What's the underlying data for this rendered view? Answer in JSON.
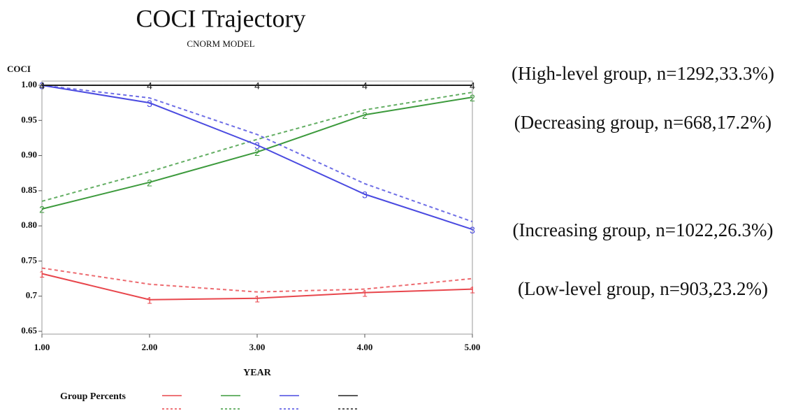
{
  "chart_data": {
    "type": "line",
    "title": "COCI Trajectory",
    "subtitle": "CNORM MODEL",
    "y_label": "COCI",
    "x_label": "YEAR",
    "legend_title": "Group Percents",
    "x": [
      1,
      2,
      3,
      4,
      5
    ],
    "xlim": [
      1,
      5
    ],
    "xticks": [
      {
        "value": 1,
        "label": "1.00"
      },
      {
        "value": 2,
        "label": "2.00"
      },
      {
        "value": 3,
        "label": "3.00"
      },
      {
        "value": 4,
        "label": "4.00"
      },
      {
        "value": 5,
        "label": "5.00"
      }
    ],
    "ylim": [
      0.65,
      1.0
    ],
    "yticks": [
      0.65,
      0.7,
      0.75,
      {
        "value": 0.8,
        "label": "0.80"
      },
      0.85,
      {
        "value": 0.9,
        "label": "0.90"
      },
      0.95,
      {
        "value": 1.0,
        "label": "1.00"
      }
    ],
    "series": [
      {
        "marker": "1",
        "color": "#e8464c",
        "dashed": false,
        "values": [
          0.732,
          0.695,
          0.697,
          0.705,
          0.71
        ]
      },
      {
        "color": "#e8464c",
        "dashed": true,
        "values": [
          0.74,
          0.717,
          0.706,
          0.71,
          0.725
        ]
      },
      {
        "marker": "2",
        "color": "#3c9a3c",
        "dashed": false,
        "values": [
          0.824,
          0.862,
          0.905,
          0.958,
          0.983
        ]
      },
      {
        "color": "#3c9a3c",
        "dashed": true,
        "values": [
          0.835,
          0.877,
          0.923,
          0.965,
          0.99
        ]
      },
      {
        "marker": "3",
        "color": "#4a4ae0",
        "dashed": false,
        "values": [
          1.0,
          0.975,
          0.915,
          0.845,
          0.795
        ]
      },
      {
        "color": "#4a4ae0",
        "dashed": true,
        "values": [
          1.0,
          0.982,
          0.93,
          0.86,
          0.806
        ]
      },
      {
        "marker": "4",
        "color": "#222222",
        "dashed": false,
        "values": [
          1.0,
          1.0,
          1.0,
          1.0,
          1.0
        ]
      },
      {
        "color": "#222222",
        "dashed": true,
        "values": [
          1.0,
          1.0,
          1.0,
          1.0,
          1.0
        ]
      }
    ],
    "annotations": [
      "(High-level group, n=1292,33.3%)",
      "(Decreasing group, n=668,17.2%)",
      "(Increasing group, n=1022,26.3%)",
      "(Low-level group, n=903,23.2%)"
    ]
  }
}
